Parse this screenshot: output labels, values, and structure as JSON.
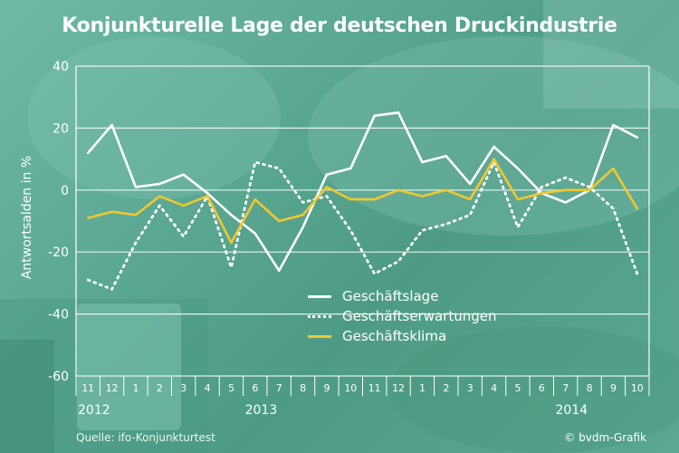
{
  "header": {
    "title": "Konjunkturelle Lage der deutschen Druckindustrie"
  },
  "footer": {
    "source": "Quelle: ifo-Konjunkturtest",
    "credit": "© bvdm-Grafik"
  },
  "chart_data": {
    "type": "line",
    "title": "Konjunkturelle Lage der deutschen Druckindustrie",
    "xlabel": "",
    "ylabel": "Antwortsalden in %",
    "ylim": [
      -60,
      40
    ],
    "yticks": [
      40,
      20,
      0,
      -20,
      -40,
      -60
    ],
    "grid": true,
    "legend_position": "center-bottom",
    "x_month_labels": [
      "11",
      "12",
      "1",
      "2",
      "3",
      "4",
      "5",
      "6",
      "7",
      "8",
      "9",
      "10",
      "11",
      "12",
      "1",
      "2",
      "3",
      "4",
      "5",
      "6",
      "7",
      "8",
      "9",
      "10"
    ],
    "x_year_labels": [
      {
        "label": "2012",
        "month_index": 0
      },
      {
        "label": "2013",
        "month_index": 7
      },
      {
        "label": "2014",
        "month_index": 20
      }
    ],
    "series": [
      {
        "name": "Geschäftslage",
        "color": "#ffffff",
        "style": "solid",
        "values": [
          12,
          21,
          1,
          2,
          5,
          -1,
          -8,
          -14,
          -26,
          -12,
          5,
          7,
          24,
          25,
          9,
          11,
          2,
          14,
          7,
          -1,
          -4,
          0,
          21,
          17
        ]
      },
      {
        "name": "Geschäftserwartungen",
        "color": "#ffffff",
        "style": "dotted",
        "values": [
          -29,
          -32,
          -17,
          -5,
          -15,
          -2,
          -25,
          9,
          7,
          -4,
          -2,
          -13,
          -27,
          -23,
          -13,
          -11,
          -8,
          9,
          -12,
          1,
          4,
          1,
          -6,
          -27
        ]
      },
      {
        "name": "Geschäftsklima",
        "color": "#f2c72e",
        "style": "solid",
        "values": [
          -9,
          -7,
          -8,
          -2,
          -5,
          -2,
          -17,
          -3,
          -10,
          -8,
          1,
          -3,
          -3,
          0,
          -2,
          0,
          -3,
          10,
          -3,
          -1,
          0,
          0,
          7,
          -6
        ]
      }
    ]
  }
}
